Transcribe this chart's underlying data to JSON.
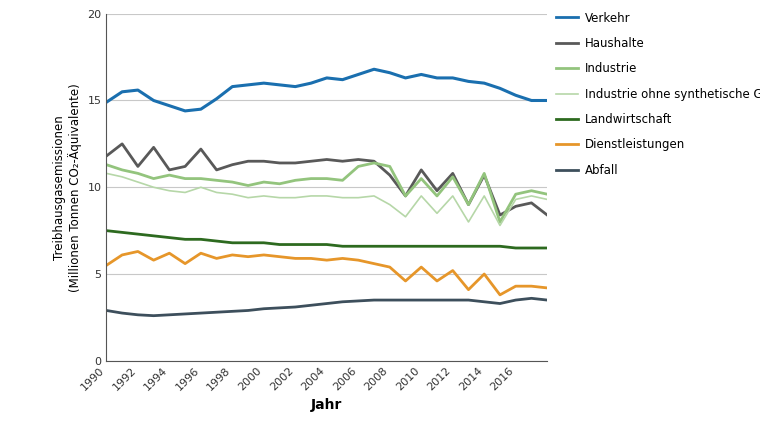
{
  "years": [
    1990,
    1991,
    1992,
    1993,
    1994,
    1995,
    1996,
    1997,
    1998,
    1999,
    2000,
    2001,
    2002,
    2003,
    2004,
    2005,
    2006,
    2007,
    2008,
    2009,
    2010,
    2011,
    2012,
    2013,
    2014,
    2015,
    2016,
    2017,
    2018
  ],
  "series": {
    "Verkehr": [
      14.9,
      15.5,
      15.6,
      15.0,
      14.7,
      14.4,
      14.5,
      15.1,
      15.8,
      15.9,
      16.0,
      15.9,
      15.8,
      16.0,
      16.3,
      16.2,
      16.5,
      16.8,
      16.6,
      16.3,
      16.5,
      16.3,
      16.3,
      16.1,
      16.0,
      15.7,
      15.3,
      15.0,
      15.0
    ],
    "Haushalte": [
      11.8,
      12.5,
      11.2,
      12.3,
      11.0,
      11.2,
      12.2,
      11.0,
      11.3,
      11.5,
      11.5,
      11.4,
      11.4,
      11.5,
      11.6,
      11.5,
      11.6,
      11.5,
      10.7,
      9.5,
      11.0,
      9.8,
      10.8,
      9.0,
      10.7,
      8.4,
      8.9,
      9.1,
      8.4
    ],
    "Industrie": [
      11.3,
      11.0,
      10.8,
      10.5,
      10.7,
      10.5,
      10.5,
      10.4,
      10.3,
      10.1,
      10.3,
      10.2,
      10.4,
      10.5,
      10.5,
      10.4,
      11.2,
      11.4,
      11.2,
      9.5,
      10.5,
      9.5,
      10.6,
      9.0,
      10.8,
      8.0,
      9.6,
      9.8,
      9.6
    ],
    "Industrie ohne synthetische Gase": [
      10.8,
      10.6,
      10.3,
      10.0,
      9.8,
      9.7,
      10.0,
      9.7,
      9.6,
      9.4,
      9.5,
      9.4,
      9.4,
      9.5,
      9.5,
      9.4,
      9.4,
      9.5,
      9.0,
      8.3,
      9.5,
      8.5,
      9.5,
      8.0,
      9.5,
      7.8,
      9.3,
      9.5,
      9.3
    ],
    "Landwirtschaft": [
      7.5,
      7.4,
      7.3,
      7.2,
      7.1,
      7.0,
      7.0,
      6.9,
      6.8,
      6.8,
      6.8,
      6.7,
      6.7,
      6.7,
      6.7,
      6.6,
      6.6,
      6.6,
      6.6,
      6.6,
      6.6,
      6.6,
      6.6,
      6.6,
      6.6,
      6.6,
      6.5,
      6.5,
      6.5
    ],
    "Dienstleistungen": [
      5.5,
      6.1,
      6.3,
      5.8,
      6.2,
      5.6,
      6.2,
      5.9,
      6.1,
      6.0,
      6.1,
      6.0,
      5.9,
      5.9,
      5.8,
      5.9,
      5.8,
      5.6,
      5.4,
      4.6,
      5.4,
      4.6,
      5.2,
      4.1,
      5.0,
      3.8,
      4.3,
      4.3,
      4.2
    ],
    "Abfall": [
      2.9,
      2.75,
      2.65,
      2.6,
      2.65,
      2.7,
      2.75,
      2.8,
      2.85,
      2.9,
      3.0,
      3.05,
      3.1,
      3.2,
      3.3,
      3.4,
      3.45,
      3.5,
      3.5,
      3.5,
      3.5,
      3.5,
      3.5,
      3.5,
      3.4,
      3.3,
      3.5,
      3.6,
      3.5
    ]
  },
  "colors": {
    "Verkehr": "#1a6faf",
    "Haushalte": "#595959",
    "Industrie": "#93c47d",
    "Industrie ohne synthetische Gase": "#b6d7a8",
    "Landwirtschaft": "#2d6a1f",
    "Dienstleistungen": "#e6962a",
    "Abfall": "#3d4f5c"
  },
  "linewidths": {
    "Verkehr": 2.2,
    "Haushalte": 2.0,
    "Industrie": 2.0,
    "Industrie ohne synthetische Gase": 1.2,
    "Landwirtschaft": 2.0,
    "Dienstleistungen": 2.0,
    "Abfall": 2.0
  },
  "ylabel": "Treibhausgasemissionen\n(Millionen Tonnen CO₂-Äquivalente)",
  "xlabel": "Jahr",
  "ylim": [
    0,
    20
  ],
  "yticks": [
    0,
    5,
    10,
    15,
    20
  ],
  "xticks": [
    1990,
    1992,
    1994,
    1996,
    1998,
    2000,
    2002,
    2004,
    2006,
    2008,
    2010,
    2012,
    2014,
    2016
  ],
  "grid_color": "#c8c8c8",
  "legend_order": [
    "Verkehr",
    "Haushalte",
    "Industrie",
    "Industrie ohne synthetische Gase",
    "Landwirtschaft",
    "Dienstleistungen",
    "Abfall"
  ]
}
